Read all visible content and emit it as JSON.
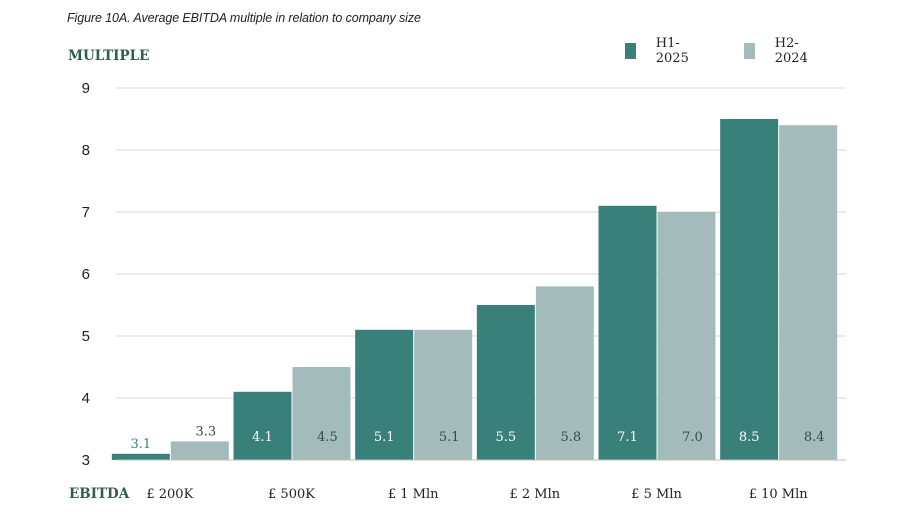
{
  "caption": "Figure 10A. Average EBITDA multiple in relation to company size",
  "colors": {
    "h1_2025": "#388079",
    "h2_2024": "#a3bcbb",
    "grid": "#d9d9d9",
    "axis_text": "#2f5f4a"
  },
  "chart_data": {
    "type": "bar",
    "title": "Figure 10A. Average EBITDA multiple in relation to company size",
    "ylabel": "MULTIPLE",
    "xlabel": "EBITDA",
    "ylim": [
      3,
      9
    ],
    "yticks": [
      "3",
      "4",
      "5",
      "6",
      "7",
      "8",
      "9"
    ],
    "grid": true,
    "legend_position": "top-right",
    "categories": [
      "£ 200K",
      "£ 500K",
      "£ 1 Mln",
      "£ 2 Mln",
      "£ 5 Mln",
      "£ 10 Mln"
    ],
    "series": [
      {
        "name": "H1-2025",
        "values": [
          3.1,
          4.1,
          5.1,
          5.5,
          7.1,
          8.5
        ],
        "labels": [
          "3.1",
          "4.1",
          "5.1",
          "5.5",
          "7.1",
          "8.5"
        ]
      },
      {
        "name": "H2-2024",
        "values": [
          3.3,
          4.5,
          5.1,
          5.8,
          7.0,
          8.4
        ],
        "labels": [
          "3.3",
          "4.5",
          "5.1",
          "5.8",
          "7.0",
          "8.4"
        ]
      }
    ]
  }
}
